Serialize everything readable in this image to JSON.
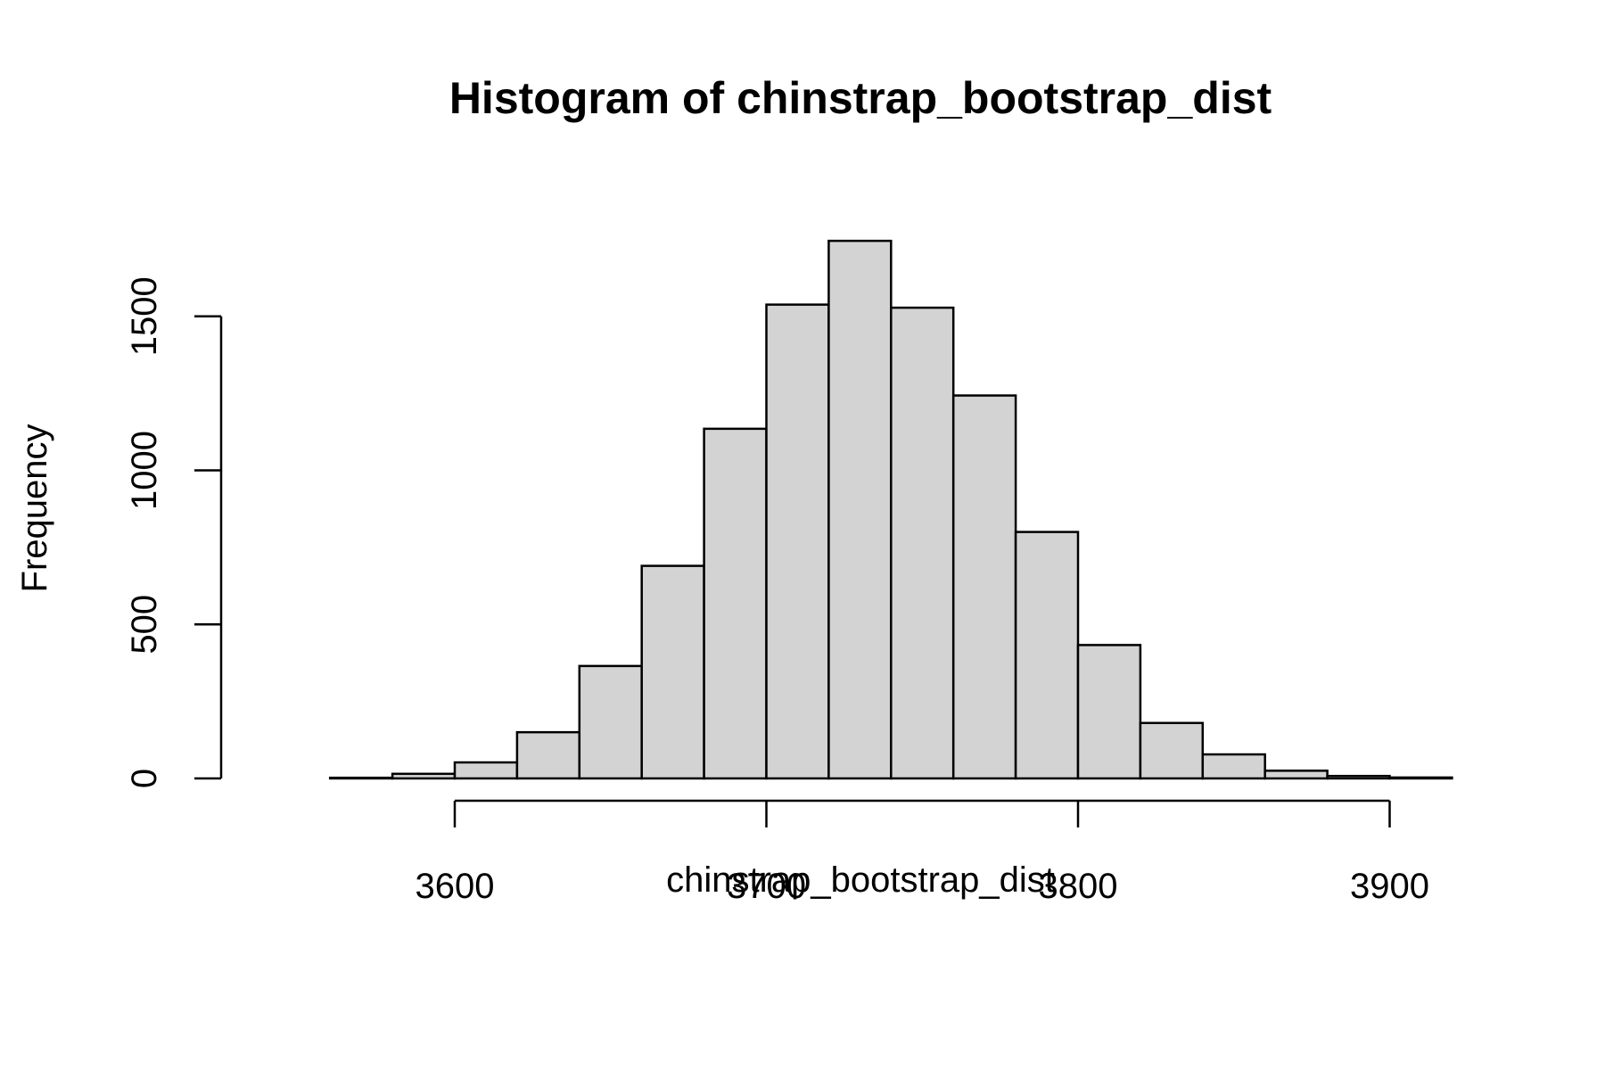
{
  "chart_data": {
    "type": "bar",
    "title": "Histogram of chinstrap_bootstrap_dist",
    "xlabel": "chinstrap_bootstrap_dist",
    "ylabel": "Frequency",
    "bar_color": "#d3d3d3",
    "xlim": [
      3540,
      3920
    ],
    "ylim": [
      0,
      1750
    ],
    "x_ticks": [
      3600,
      3700,
      3800,
      3900
    ],
    "x_tick_labels": [
      "3600",
      "3700",
      "3800",
      "3900"
    ],
    "y_ticks": [
      0,
      500,
      1000,
      1500
    ],
    "y_tick_labels": [
      "0",
      "500",
      "1000",
      "1500"
    ],
    "bins": [
      {
        "start": 3540,
        "end": 3560,
        "count": 0
      },
      {
        "start": 3560,
        "end": 3580,
        "count": 2
      },
      {
        "start": 3580,
        "end": 3600,
        "count": 15
      },
      {
        "start": 3600,
        "end": 3620,
        "count": 52
      },
      {
        "start": 3620,
        "end": 3640,
        "count": 150
      },
      {
        "start": 3640,
        "end": 3660,
        "count": 365
      },
      {
        "start": 3660,
        "end": 3680,
        "count": 690
      },
      {
        "start": 3680,
        "end": 3700,
        "count": 1135
      },
      {
        "start": 3700,
        "end": 3720,
        "count": 1538
      },
      {
        "start": 3720,
        "end": 3740,
        "count": 1745
      },
      {
        "start": 3740,
        "end": 3760,
        "count": 1528
      },
      {
        "start": 3760,
        "end": 3780,
        "count": 1243
      },
      {
        "start": 3780,
        "end": 3800,
        "count": 800
      },
      {
        "start": 3800,
        "end": 3820,
        "count": 433
      },
      {
        "start": 3820,
        "end": 3840,
        "count": 180
      },
      {
        "start": 3840,
        "end": 3860,
        "count": 78
      },
      {
        "start": 3860,
        "end": 3880,
        "count": 25
      },
      {
        "start": 3880,
        "end": 3900,
        "count": 8
      },
      {
        "start": 3900,
        "end": 3920,
        "count": 3
      }
    ]
  }
}
